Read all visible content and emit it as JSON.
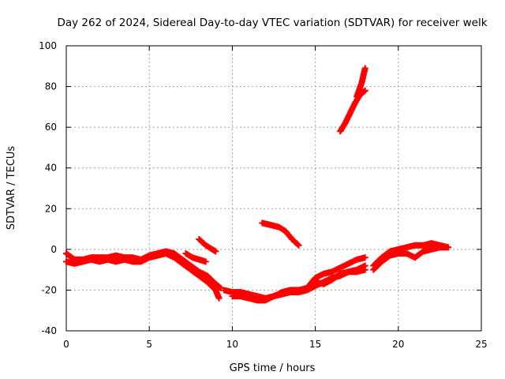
{
  "chart_data": {
    "type": "scatter",
    "title": "Day 262 of 2024, Sidereal Day-to-day VTEC variation (SDTVAR) for receiver welk",
    "xlabel": "GPS time / hours",
    "ylabel": "SDTVAR / TECUs",
    "xlim": [
      0,
      25
    ],
    "ylim": [
      -40,
      100
    ],
    "xticks": [
      0,
      5,
      10,
      15,
      20,
      25
    ],
    "yticks": [
      -40,
      -20,
      0,
      20,
      40,
      60,
      80,
      100
    ],
    "grid": true,
    "marker": "+",
    "series": [
      {
        "name": "SDTVAR",
        "color": "#ff0000",
        "segments": [
          [
            [
              0.0,
              -2
            ],
            [
              0.5,
              -5
            ],
            [
              1.0,
              -5
            ],
            [
              1.5,
              -4
            ],
            [
              2.0,
              -4
            ],
            [
              2.5,
              -4
            ],
            [
              3.0,
              -3
            ],
            [
              3.5,
              -4
            ],
            [
              4.0,
              -4
            ],
            [
              4.5,
              -5
            ],
            [
              5.0,
              -3
            ],
            [
              5.5,
              -2
            ],
            [
              6.0,
              -1
            ],
            [
              6.5,
              -2
            ],
            [
              7.0,
              -5
            ],
            [
              7.5,
              -8
            ],
            [
              8.0,
              -11
            ],
            [
              8.5,
              -13
            ],
            [
              9.0,
              -17
            ],
            [
              9.3,
              -19
            ]
          ],
          [
            [
              0.0,
              -6
            ],
            [
              0.5,
              -7
            ],
            [
              1.0,
              -6
            ],
            [
              1.5,
              -5
            ],
            [
              2.0,
              -6
            ],
            [
              2.5,
              -5
            ],
            [
              3.0,
              -6
            ],
            [
              3.5,
              -5
            ],
            [
              4.0,
              -6
            ],
            [
              4.5,
              -6
            ],
            [
              5.0,
              -4
            ],
            [
              5.5,
              -3
            ],
            [
              6.0,
              -2
            ],
            [
              6.5,
              -4
            ],
            [
              7.0,
              -7
            ],
            [
              7.5,
              -10
            ],
            [
              8.0,
              -13
            ],
            [
              8.5,
              -16
            ],
            [
              9.0,
              -20
            ],
            [
              9.2,
              -24
            ]
          ],
          [
            [
              7.2,
              -2
            ],
            [
              7.6,
              -4
            ],
            [
              8.0,
              -5
            ],
            [
              8.4,
              -6
            ]
          ],
          [
            [
              8.0,
              5
            ],
            [
              8.4,
              2
            ],
            [
              8.8,
              0
            ],
            [
              9.0,
              -1
            ]
          ],
          [
            [
              9.5,
              -20
            ],
            [
              10.0,
              -21
            ],
            [
              10.5,
              -21
            ],
            [
              11.0,
              -22
            ],
            [
              11.5,
              -23
            ],
            [
              12.0,
              -24
            ],
            [
              12.5,
              -23
            ],
            [
              13.0,
              -21
            ],
            [
              13.5,
              -20
            ],
            [
              14.0,
              -20
            ],
            [
              14.5,
              -19
            ],
            [
              15.0,
              -14
            ],
            [
              15.5,
              -12
            ],
            [
              16.0,
              -11
            ],
            [
              16.5,
              -9
            ],
            [
              17.0,
              -7
            ],
            [
              17.5,
              -5
            ],
            [
              18.0,
              -4
            ]
          ],
          [
            [
              10.0,
              -23
            ],
            [
              10.5,
              -23
            ],
            [
              11.0,
              -24
            ],
            [
              11.5,
              -25
            ],
            [
              12.0,
              -25
            ],
            [
              12.5,
              -23
            ],
            [
              13.0,
              -22
            ],
            [
              13.5,
              -21
            ],
            [
              14.0,
              -21
            ],
            [
              14.5,
              -20
            ],
            [
              15.0,
              -18
            ],
            [
              15.5,
              -16
            ],
            [
              16.0,
              -14
            ],
            [
              16.5,
              -13
            ],
            [
              17.0,
              -11
            ],
            [
              17.5,
              -10
            ],
            [
              18.0,
              -8
            ]
          ],
          [
            [
              15.0,
              -16
            ],
            [
              15.5,
              -17
            ],
            [
              16.0,
              -15
            ],
            [
              16.5,
              -12
            ],
            [
              17.0,
              -11
            ],
            [
              17.5,
              -11
            ],
            [
              18.0,
              -10
            ]
          ],
          [
            [
              11.8,
              13
            ],
            [
              12.3,
              12
            ],
            [
              12.8,
              11
            ],
            [
              13.2,
              9
            ],
            [
              13.6,
              5
            ],
            [
              14.0,
              2
            ]
          ],
          [
            [
              16.5,
              58
            ],
            [
              16.8,
              62
            ],
            [
              17.1,
              67
            ],
            [
              17.4,
              72
            ],
            [
              17.7,
              76
            ],
            [
              18.0,
              78
            ]
          ],
          [
            [
              17.5,
              75
            ],
            [
              17.8,
              82
            ],
            [
              18.0,
              89
            ]
          ],
          [
            [
              18.5,
              -8
            ],
            [
              19.0,
              -4
            ],
            [
              19.5,
              -1
            ],
            [
              20.0,
              0
            ],
            [
              20.5,
              1
            ],
            [
              21.0,
              2
            ],
            [
              21.5,
              2
            ],
            [
              22.0,
              3
            ],
            [
              22.5,
              2
            ],
            [
              23.0,
              1
            ]
          ],
          [
            [
              18.5,
              -10
            ],
            [
              19.0,
              -6
            ],
            [
              19.5,
              -3
            ],
            [
              20.0,
              -2
            ],
            [
              20.5,
              -2
            ],
            [
              21.0,
              -4
            ],
            [
              21.5,
              -1
            ],
            [
              22.0,
              0
            ],
            [
              22.5,
              1
            ],
            [
              23.0,
              1
            ]
          ]
        ]
      }
    ]
  }
}
